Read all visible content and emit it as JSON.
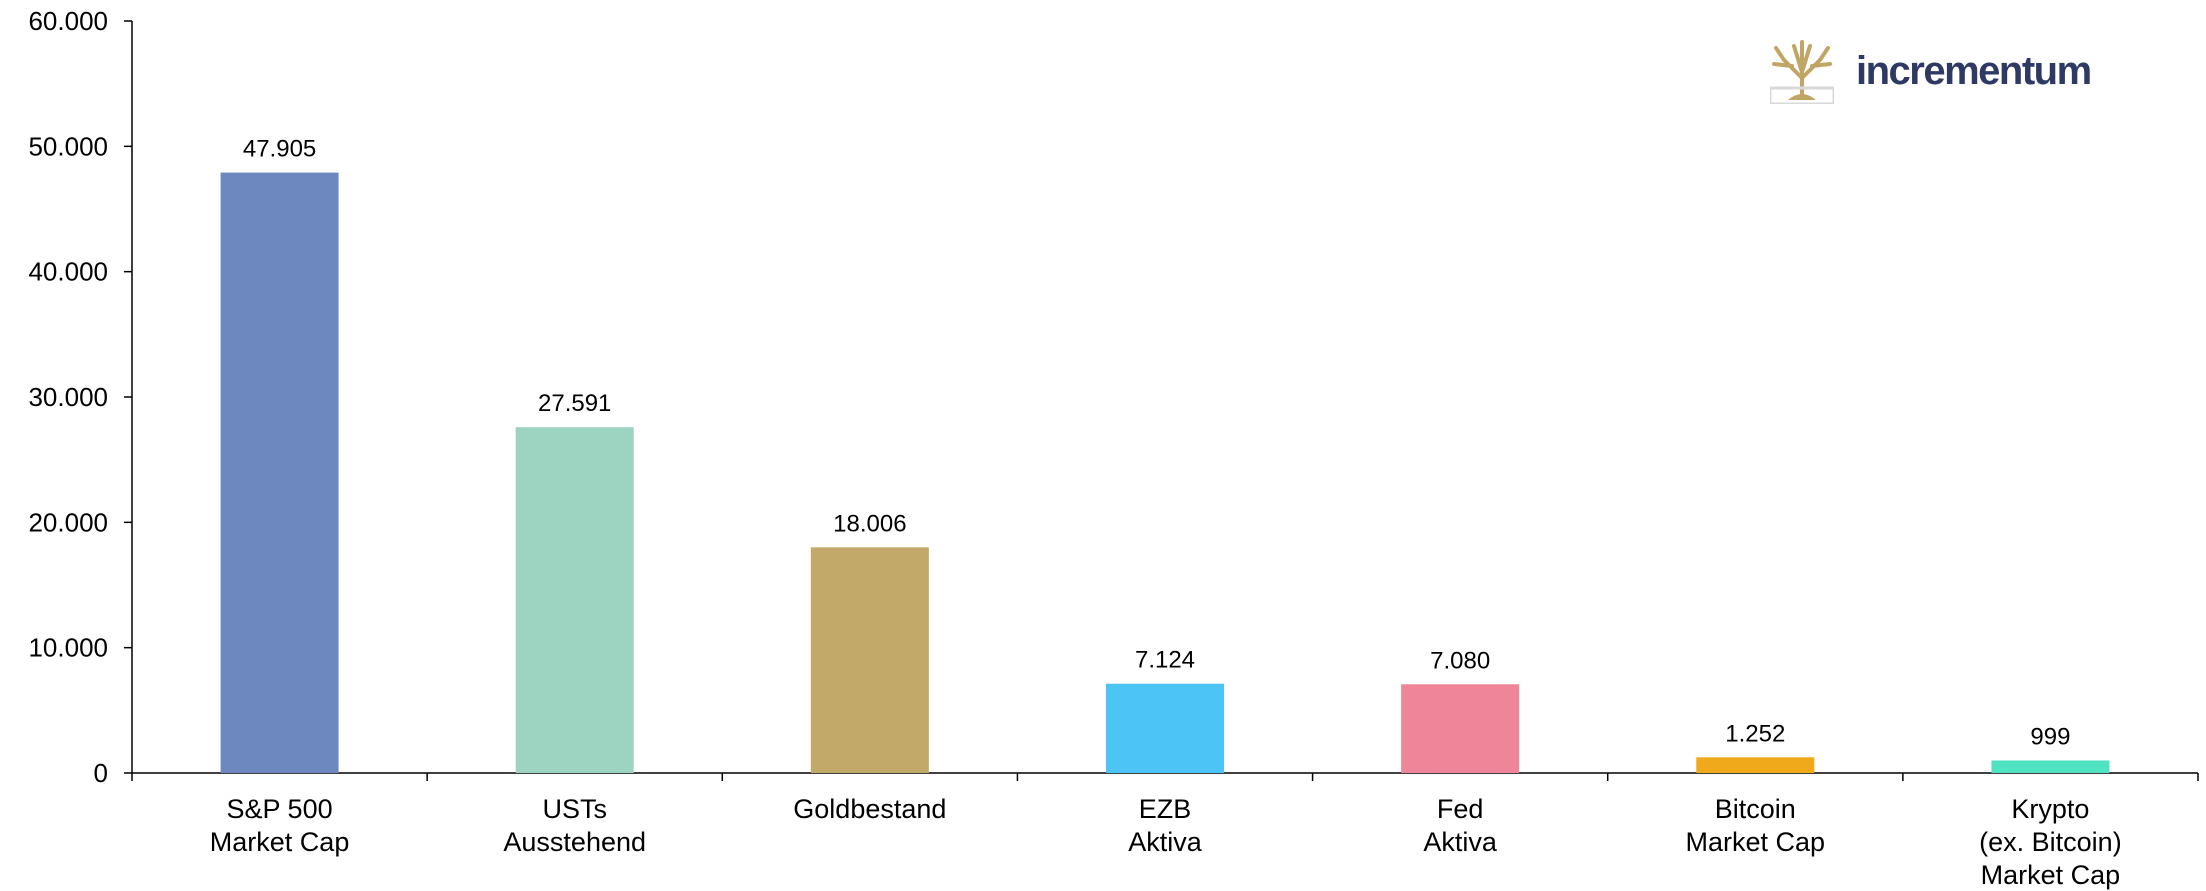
{
  "logo": {
    "text": "incrementum",
    "icon": "tree-icon",
    "color": "#c1a565",
    "text_color": "#2e3a63"
  },
  "chart_data": {
    "type": "bar",
    "categories": [
      [
        "S&P 500",
        "Market Cap"
      ],
      [
        "USTs",
        "Ausstehend"
      ],
      [
        "Goldbestand"
      ],
      [
        "EZB",
        "Aktiva"
      ],
      [
        "Fed",
        "Aktiva"
      ],
      [
        "Bitcoin",
        "Market Cap"
      ],
      [
        "Krypto",
        "(ex. Bitcoin)",
        "Market Cap"
      ]
    ],
    "values": [
      47905,
      27591,
      18006,
      7124,
      7080,
      1252,
      999
    ],
    "value_labels": [
      "47.905",
      "27.591",
      "18.006",
      "7.124",
      "7.080",
      "1.252",
      "999"
    ],
    "colors": [
      "#6d87bf",
      "#9dd4c1",
      "#c2a96a",
      "#4cc4f5",
      "#ef8598",
      "#f0a91a",
      "#50e3c2"
    ],
    "ylim": [
      0,
      60000
    ],
    "yticks": [
      0,
      10000,
      20000,
      30000,
      40000,
      50000,
      60000
    ],
    "ytick_labels": [
      "0",
      "10.000",
      "20.000",
      "30.000",
      "40.000",
      "50.000",
      "60.000"
    ],
    "title": "",
    "xlabel": "",
    "ylabel": "",
    "grid": false,
    "legend": "none"
  }
}
